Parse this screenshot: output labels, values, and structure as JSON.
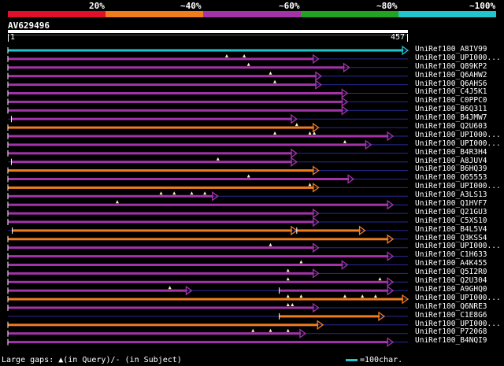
{
  "legend": {
    "labels": [
      "20%",
      "~40%",
      "~60%",
      "~80%",
      "~100%"
    ],
    "colors": [
      "#e0102a",
      "#f07c1e",
      "#a234a8",
      "#22a422",
      "#22c5cc"
    ]
  },
  "query": {
    "name": "AV629496",
    "start": "1",
    "end": "457"
  },
  "hits": [
    {
      "label": "UniRef100_A8IV99",
      "color": "#22c5cc",
      "segs": [
        [
          0,
          457
        ]
      ],
      "gaps": []
    },
    {
      "label": "UniRef100_UPI000...",
      "color": "#a234a8",
      "segs": [
        [
          0,
          355
        ]
      ],
      "gaps": [
        250,
        270
      ]
    },
    {
      "label": "UniRef100_Q89KP2",
      "color": "#a234a8",
      "segs": [
        [
          0,
          390
        ]
      ],
      "gaps": [
        275
      ]
    },
    {
      "label": "UniRef100_Q6AHW2",
      "color": "#a234a8",
      "segs": [
        [
          0,
          358
        ]
      ],
      "gaps": [
        300
      ]
    },
    {
      "label": "UniRef100_Q6AHS6",
      "color": "#a234a8",
      "segs": [
        [
          0,
          358
        ]
      ],
      "gaps": [
        305
      ]
    },
    {
      "label": "UniRef100_C4J5K1",
      "color": "#a234a8",
      "segs": [
        [
          0,
          388
        ]
      ],
      "gaps": []
    },
    {
      "label": "UniRef100_C0PPC0",
      "color": "#a234a8",
      "segs": [
        [
          0,
          388
        ]
      ],
      "gaps": []
    },
    {
      "label": "UniRef100_B6Q311",
      "color": "#a234a8",
      "segs": [
        [
          0,
          388
        ]
      ],
      "gaps": []
    },
    {
      "label": "UniRef100_B4JMW7",
      "color": "#a234a8",
      "segs": [
        [
          4,
          330
        ]
      ],
      "gaps": []
    },
    {
      "label": "UniRef100_Q2U603",
      "color": "#f07c1e",
      "segs": [
        [
          0,
          355
        ]
      ],
      "gaps": [
        330
      ]
    },
    {
      "label": "UniRef100_UPI000...",
      "color": "#a234a8",
      "segs": [
        [
          0,
          440
        ]
      ],
      "gaps": [
        305,
        345,
        350
      ]
    },
    {
      "label": "UniRef100_UPI000...",
      "color": "#a234a8",
      "segs": [
        [
          0,
          415
        ]
      ],
      "gaps": [
        385
      ]
    },
    {
      "label": "UniRef100_B4R3H4",
      "color": "#a234a8",
      "segs": [
        [
          0,
          330
        ]
      ],
      "gaps": []
    },
    {
      "label": "UniRef100_A8JUV4",
      "color": "#a234a8",
      "segs": [
        [
          4,
          330
        ]
      ],
      "gaps": [
        240
      ]
    },
    {
      "label": "UniRef100_B6HQ39",
      "color": "#f07c1e",
      "segs": [
        [
          0,
          355
        ]
      ],
      "gaps": []
    },
    {
      "label": "UniRef100_Q65553",
      "color": "#a234a8",
      "segs": [
        [
          0,
          395
        ]
      ],
      "gaps": [
        275
      ]
    },
    {
      "label": "UniRef100_UPI000...",
      "color": "#f07c1e",
      "segs": [
        [
          0,
          355
        ]
      ],
      "gaps": [
        345
      ]
    },
    {
      "label": "UniRef100_A3LS13",
      "color": "#a234a8",
      "segs": [
        [
          0,
          240
        ]
      ],
      "gaps": [
        175,
        190,
        210,
        225
      ]
    },
    {
      "label": "UniRef100_Q1HVF7",
      "color": "#a234a8",
      "segs": [
        [
          0,
          440
        ]
      ],
      "gaps": [
        125
      ]
    },
    {
      "label": "UniRef100_Q21GU3",
      "color": "#a234a8",
      "segs": [
        [
          0,
          355
        ]
      ],
      "gaps": []
    },
    {
      "label": "UniRef100_C5XS10",
      "color": "#a234a8",
      "segs": [
        [
          0,
          355
        ]
      ],
      "gaps": []
    },
    {
      "label": "UniRef100_B4L5V4",
      "color": "#f07c1e",
      "segs": [
        [
          5,
          330
        ],
        [
          330,
          408
        ]
      ],
      "gaps": []
    },
    {
      "label": "UniRef100_Q3KSS4",
      "color": "#f07c1e",
      "segs": [
        [
          0,
          440
        ]
      ],
      "gaps": []
    },
    {
      "label": "UniRef100_UPI000...",
      "color": "#a234a8",
      "segs": [
        [
          0,
          355
        ]
      ],
      "gaps": [
        300
      ]
    },
    {
      "label": "UniRef100_C1H633",
      "color": "#a234a8",
      "segs": [
        [
          0,
          440
        ]
      ],
      "gaps": []
    },
    {
      "label": "UniRef100_A4K455",
      "color": "#a234a8",
      "segs": [
        [
          0,
          388
        ]
      ],
      "gaps": [
        335
      ]
    },
    {
      "label": "UniRef100_Q5I2R0",
      "color": "#a234a8",
      "segs": [
        [
          0,
          355
        ]
      ],
      "gaps": [
        320
      ]
    },
    {
      "label": "UniRef100_Q2U304",
      "color": "#a234a8",
      "segs": [
        [
          0,
          440
        ]
      ],
      "gaps": [
        320,
        425
      ]
    },
    {
      "label": "UniRef100_A9GHQ0",
      "color": "#a234a8",
      "segs": [
        [
          0,
          210
        ],
        [
          310,
          440
        ]
      ],
      "gaps": [
        185
      ]
    },
    {
      "label": "UniRef100_UPI000...",
      "color": "#f07c1e",
      "segs": [
        [
          0,
          457
        ]
      ],
      "gaps": [
        320,
        335,
        385,
        405,
        420
      ]
    },
    {
      "label": "UniRef100_Q6NRE3",
      "color": "#a234a8",
      "segs": [
        [
          0,
          355
        ]
      ],
      "gaps": [
        320,
        325
      ]
    },
    {
      "label": "UniRef100_C1E8G6",
      "color": "#f07c1e",
      "segs": [
        [
          310,
          430
        ]
      ],
      "gaps": []
    },
    {
      "label": "UniRef100_UPI000...",
      "color": "#f07c1e",
      "segs": [
        [
          0,
          360
        ]
      ],
      "gaps": []
    },
    {
      "label": "UniRef100_P72068",
      "color": "#a234a8",
      "segs": [
        [
          0,
          340
        ]
      ],
      "gaps": [
        280,
        300,
        320
      ]
    },
    {
      "label": "UniRef100_B4NQI9",
      "color": "#a234a8",
      "segs": [
        [
          0,
          440
        ]
      ],
      "gaps": []
    }
  ],
  "footer": {
    "left": "Large gaps: ▲(in Query)/- (in Subject)",
    "right": "=100char."
  }
}
